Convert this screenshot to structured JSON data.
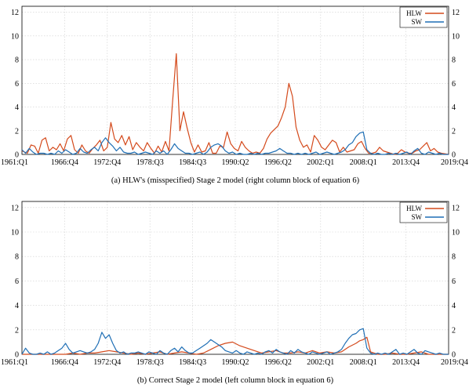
{
  "charts": [
    {
      "caption": "(a) HLW's (misspecified) Stage 2 model (right column block of equation 6)",
      "x_tick_labels": [
        "1961:Q1",
        "1966:Q4",
        "1972:Q4",
        "1978:Q3",
        "1984:Q3",
        "1990:Q2",
        "1996:Q2",
        "2002:Q1",
        "2008:Q1",
        "2013:Q4",
        "2019:Q4"
      ],
      "y_ticks": [
        0,
        2,
        4,
        6,
        8,
        10,
        12
      ]
    },
    {
      "caption": "(b) Correct Stage 2 model (left column block in equation 6)",
      "x_tick_labels": [
        "1961:Q1",
        "1966:Q4",
        "1972:Q4",
        "1978:Q3",
        "1984:Q3",
        "1990:Q2",
        "1996:Q2",
        "2002:Q1",
        "2008:Q1",
        "2013:Q4",
        "2019:Q4"
      ],
      "y_ticks": [
        0,
        2,
        4,
        6,
        8,
        10,
        12
      ]
    }
  ],
  "chart_data": [
    {
      "type": "line",
      "title": "",
      "caption": "(a) HLW's (misspecified) Stage 2 model (right column block of equation 6)",
      "x_unit": "quarter index from 1961:Q1",
      "xlim": [
        0,
        235
      ],
      "ylim": [
        0,
        12.5
      ],
      "grid": true,
      "legend_position": "top-right",
      "series": [
        {
          "name": "HLW",
          "color": "#d44a1c",
          "x": [
            0,
            3,
            5,
            7,
            9,
            11,
            13,
            15,
            17,
            19,
            21,
            23,
            25,
            27,
            29,
            31,
            33,
            35,
            37,
            39,
            41,
            43,
            45,
            47,
            49,
            51,
            53,
            55,
            57,
            59,
            61,
            63,
            65,
            67,
            69,
            71,
            73,
            75,
            77,
            79,
            81,
            83,
            85,
            87,
            89,
            91,
            93,
            95,
            97,
            99,
            101,
            103,
            105,
            107,
            109,
            111,
            113,
            115,
            117,
            119,
            121,
            123,
            125,
            127,
            129,
            131,
            133,
            135,
            137,
            139,
            141,
            143,
            145,
            147,
            149,
            151,
            153,
            155,
            157,
            159,
            161,
            163,
            165,
            167,
            169,
            171,
            173,
            175,
            177,
            179,
            181,
            183,
            185,
            187,
            189,
            191,
            193,
            195,
            197,
            199,
            201,
            203,
            205,
            207,
            209,
            211,
            213,
            215,
            217,
            219,
            221,
            223,
            225,
            227,
            229,
            231,
            233,
            235
          ],
          "y": [
            0.3,
            0.1,
            0.8,
            0.7,
            0.1,
            1.2,
            1.4,
            0.3,
            0.6,
            0.4,
            0.9,
            0.3,
            1.3,
            1.6,
            0.4,
            0.1,
            0.8,
            0.3,
            0.1,
            0.5,
            0.8,
            1.2,
            0.3,
            0.6,
            2.7,
            1.3,
            1.0,
            1.6,
            0.8,
            1.5,
            0.4,
            1.0,
            0.6,
            0.3,
            1.0,
            0.5,
            0.1,
            0.7,
            0.2,
            1.1,
            0.3,
            4.5,
            8.5,
            2.0,
            3.6,
            2.2,
            1.0,
            0.2,
            0.8,
            0.2,
            0.3,
            1.0,
            0.1,
            0.1,
            0.7,
            0.6,
            1.9,
            0.9,
            0.5,
            0.3,
            1.1,
            0.6,
            0.3,
            0.1,
            0.2,
            0.1,
            0.5,
            1.3,
            1.8,
            2.1,
            2.4,
            3.1,
            4.0,
            6.0,
            4.9,
            2.3,
            1.2,
            0.6,
            0.8,
            0.2,
            1.6,
            1.2,
            0.6,
            0.4,
            0.8,
            1.2,
            1.0,
            0.2,
            0.6,
            0.2,
            0.3,
            0.4,
            0.9,
            1.1,
            0.5,
            0.1,
            0.1,
            0.2,
            0.6,
            0.3,
            0.2,
            0.1,
            0.0,
            0.1,
            0.4,
            0.2,
            0.1,
            0.1,
            0.3,
            0.4,
            0.7,
            1.0,
            0.3,
            0.5,
            0.2,
            0.1,
            0.05,
            0.0
          ]
        },
        {
          "name": "SW",
          "color": "#1f6fb5",
          "x": [
            0,
            2,
            4,
            6,
            8,
            10,
            12,
            14,
            16,
            18,
            20,
            22,
            24,
            26,
            28,
            30,
            32,
            34,
            36,
            38,
            40,
            42,
            44,
            46,
            48,
            50,
            52,
            54,
            56,
            58,
            60,
            62,
            64,
            66,
            68,
            70,
            72,
            74,
            76,
            78,
            80,
            82,
            84,
            86,
            88,
            90,
            92,
            94,
            96,
            98,
            100,
            102,
            104,
            106,
            108,
            110,
            112,
            114,
            116,
            118,
            120,
            122,
            124,
            126,
            128,
            130,
            132,
            134,
            136,
            138,
            140,
            142,
            144,
            146,
            148,
            150,
            152,
            154,
            156,
            158,
            160,
            162,
            164,
            166,
            168,
            170,
            172,
            174,
            176,
            178,
            180,
            182,
            184,
            186,
            188,
            190,
            192,
            194,
            196,
            198,
            200,
            202,
            204,
            206,
            208,
            210,
            212,
            214,
            216,
            218,
            220,
            222,
            224,
            226,
            228,
            230,
            232,
            234,
            235
          ],
          "y": [
            0.4,
            0.1,
            0.5,
            0.2,
            0.0,
            0.1,
            0.1,
            0.0,
            0.1,
            0.0,
            0.3,
            0.1,
            0.4,
            0.2,
            0.0,
            0.1,
            0.5,
            0.2,
            0.1,
            0.4,
            0.6,
            0.3,
            1.0,
            1.4,
            1.0,
            0.7,
            0.3,
            0.6,
            0.2,
            0.1,
            0.1,
            0.2,
            0.0,
            0.1,
            0.2,
            0.1,
            0.0,
            0.3,
            0.1,
            0.3,
            0.0,
            0.4,
            0.9,
            0.5,
            0.3,
            0.1,
            0.1,
            0.0,
            0.1,
            0.2,
            0.0,
            0.2,
            0.6,
            0.8,
            0.9,
            0.7,
            0.3,
            0.1,
            0.2,
            0.0,
            0.1,
            0.0,
            0.0,
            0.1,
            0.0,
            0.1,
            0.0,
            0.1,
            0.1,
            0.2,
            0.3,
            0.5,
            0.3,
            0.1,
            0.1,
            0.0,
            0.1,
            0.0,
            0.1,
            0.0,
            0.1,
            0.2,
            0.0,
            0.1,
            0.2,
            0.1,
            0.0,
            0.1,
            0.2,
            0.4,
            0.8,
            1.0,
            1.5,
            1.8,
            1.9,
            0.4,
            0.1,
            0.0,
            0.1,
            0.0,
            0.0,
            0.1,
            0.0,
            0.1,
            0.0,
            0.1,
            0.2,
            0.0,
            0.3,
            0.5,
            0.1,
            0.0,
            0.2,
            0.1,
            0.0,
            0.1,
            0.0,
            0.0,
            0.0
          ]
        }
      ]
    },
    {
      "type": "line",
      "title": "",
      "caption": "(b) Correct Stage 2 model (left column block in equation 6)",
      "x_unit": "quarter index from 1961:Q1",
      "xlim": [
        0,
        235
      ],
      "ylim": [
        0,
        12.5
      ],
      "grid": true,
      "legend_position": "top-right",
      "series": [
        {
          "name": "HLW",
          "color": "#d44a1c",
          "x": [
            0,
            4,
            8,
            12,
            16,
            20,
            24,
            28,
            32,
            36,
            40,
            44,
            48,
            52,
            56,
            60,
            64,
            68,
            72,
            76,
            80,
            84,
            88,
            92,
            96,
            100,
            104,
            108,
            112,
            116,
            120,
            124,
            128,
            132,
            136,
            140,
            144,
            148,
            152,
            156,
            160,
            164,
            168,
            172,
            176,
            180,
            184,
            186,
            188,
            190,
            192,
            196,
            200,
            204,
            208,
            212,
            216,
            220,
            224,
            228,
            232,
            235
          ],
          "y": [
            0.0,
            0.0,
            0.0,
            0.0,
            0.0,
            0.0,
            0.0,
            0.1,
            0.0,
            0.1,
            0.1,
            0.2,
            0.3,
            0.2,
            0.1,
            0.0,
            0.1,
            0.0,
            0.1,
            0.2,
            0.0,
            0.1,
            0.2,
            0.1,
            0.0,
            0.1,
            0.4,
            0.7,
            0.9,
            1.0,
            0.7,
            0.5,
            0.3,
            0.1,
            0.2,
            0.3,
            0.1,
            0.1,
            0.2,
            0.1,
            0.3,
            0.1,
            0.2,
            0.1,
            0.2,
            0.6,
            0.9,
            1.1,
            1.2,
            1.4,
            0.2,
            0.0,
            0.0,
            0.1,
            0.0,
            0.0,
            0.1,
            0.2,
            0.0,
            0.0,
            0.0,
            0.0
          ]
        },
        {
          "name": "SW",
          "color": "#1f6fb5",
          "x": [
            0,
            2,
            4,
            6,
            8,
            10,
            12,
            14,
            16,
            18,
            20,
            22,
            24,
            26,
            28,
            30,
            32,
            34,
            36,
            38,
            40,
            42,
            44,
            46,
            48,
            50,
            52,
            54,
            56,
            58,
            60,
            62,
            64,
            66,
            68,
            70,
            72,
            74,
            76,
            78,
            80,
            82,
            84,
            86,
            88,
            90,
            92,
            94,
            96,
            98,
            100,
            102,
            104,
            106,
            108,
            110,
            112,
            114,
            116,
            118,
            120,
            122,
            124,
            126,
            128,
            130,
            132,
            134,
            136,
            138,
            140,
            142,
            144,
            146,
            148,
            150,
            152,
            154,
            156,
            158,
            160,
            162,
            164,
            166,
            168,
            170,
            172,
            174,
            176,
            178,
            180,
            182,
            184,
            186,
            188,
            190,
            192,
            194,
            196,
            198,
            200,
            202,
            204,
            206,
            208,
            210,
            212,
            214,
            216,
            218,
            220,
            222,
            224,
            226,
            228,
            230,
            232,
            234,
            235
          ],
          "y": [
            0.0,
            0.5,
            0.1,
            0.0,
            0.0,
            0.1,
            0.0,
            0.2,
            0.0,
            0.1,
            0.3,
            0.5,
            0.9,
            0.4,
            0.1,
            0.2,
            0.3,
            0.2,
            0.1,
            0.2,
            0.4,
            0.9,
            1.8,
            1.3,
            1.6,
            0.9,
            0.3,
            0.1,
            0.2,
            0.0,
            0.1,
            0.1,
            0.2,
            0.1,
            0.0,
            0.2,
            0.1,
            0.0,
            0.3,
            0.1,
            0.0,
            0.3,
            0.5,
            0.2,
            0.6,
            0.3,
            0.1,
            0.1,
            0.3,
            0.5,
            0.7,
            0.9,
            1.2,
            1.0,
            0.8,
            0.6,
            0.3,
            0.2,
            0.1,
            0.3,
            0.1,
            0.0,
            0.2,
            0.1,
            0.0,
            0.1,
            0.0,
            0.2,
            0.3,
            0.1,
            0.4,
            0.2,
            0.1,
            0.0,
            0.3,
            0.1,
            0.4,
            0.2,
            0.1,
            0.0,
            0.2,
            0.1,
            0.0,
            0.1,
            0.2,
            0.0,
            0.1,
            0.2,
            0.4,
            0.9,
            1.3,
            1.6,
            1.7,
            2.0,
            2.1,
            0.5,
            0.1,
            0.0,
            0.1,
            0.0,
            0.1,
            0.0,
            0.2,
            0.4,
            0.0,
            0.1,
            0.0,
            0.2,
            0.4,
            0.1,
            0.0,
            0.3,
            0.2,
            0.1,
            0.0,
            0.1,
            0.0,
            0.0,
            0.0
          ]
        }
      ]
    }
  ]
}
